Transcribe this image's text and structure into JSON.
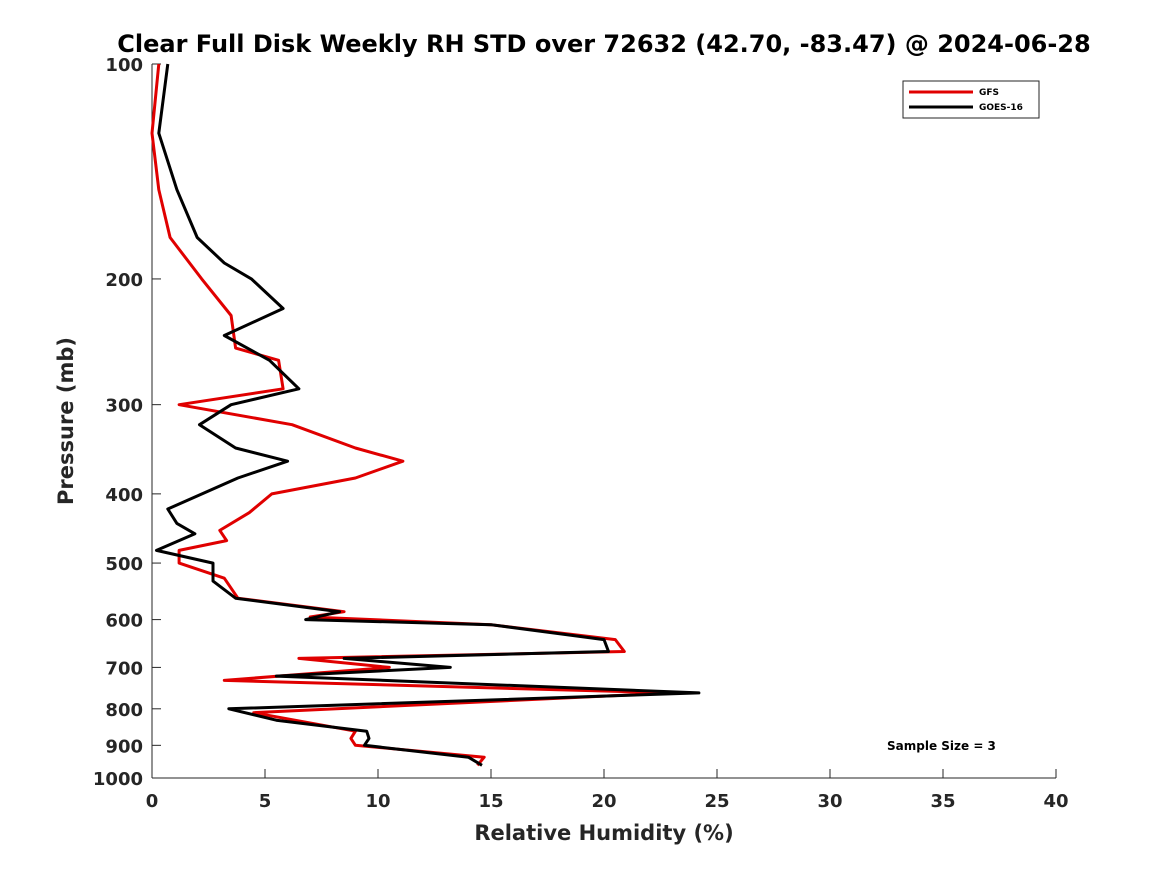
{
  "chart_data": {
    "type": "line",
    "title": "Clear Full Disk Weekly RH STD over 72632 (42.70, -83.47) @ 2024-06-28",
    "xlabel": "Relative Humidity (%)",
    "ylabel": "Pressure (mb)",
    "xlim": [
      0,
      40
    ],
    "ylim": [
      100,
      1000
    ],
    "yscale": "log",
    "yreversed": true,
    "xticks": [
      0,
      5,
      10,
      15,
      20,
      25,
      30,
      35,
      40
    ],
    "yticks": [
      100,
      200,
      300,
      400,
      500,
      600,
      700,
      800,
      900,
      1000
    ],
    "grid": false,
    "legend_position": "top-right",
    "annotation": "Sample Size = 3",
    "series": [
      {
        "name": "GFS",
        "color": "#e00000",
        "points": [
          [
            0.3,
            100
          ],
          [
            0.0,
            125
          ],
          [
            0.3,
            150
          ],
          [
            0.8,
            175
          ],
          [
            2.2,
            200
          ],
          [
            3.5,
            225
          ],
          [
            3.7,
            250
          ],
          [
            5.6,
            260
          ],
          [
            5.8,
            285
          ],
          [
            1.2,
            300
          ],
          [
            6.2,
            320
          ],
          [
            9.0,
            345
          ],
          [
            11.1,
            360
          ],
          [
            9.0,
            380
          ],
          [
            5.3,
            400
          ],
          [
            4.3,
            425
          ],
          [
            3.0,
            450
          ],
          [
            3.3,
            465
          ],
          [
            1.2,
            480
          ],
          [
            1.2,
            500
          ],
          [
            3.2,
            525
          ],
          [
            3.8,
            560
          ],
          [
            8.5,
            585
          ],
          [
            7.0,
            595
          ],
          [
            15.0,
            610
          ],
          [
            20.5,
            640
          ],
          [
            20.9,
            665
          ],
          [
            6.5,
            680
          ],
          [
            10.5,
            700
          ],
          [
            3.2,
            730
          ],
          [
            23.0,
            760
          ],
          [
            4.5,
            810
          ],
          [
            9.0,
            860
          ],
          [
            8.8,
            880
          ],
          [
            9.0,
            900
          ],
          [
            14.7,
            935
          ],
          [
            14.4,
            960
          ]
        ]
      },
      {
        "name": "GOES-16",
        "color": "#000000",
        "points": [
          [
            0.7,
            100
          ],
          [
            0.3,
            125
          ],
          [
            1.1,
            150
          ],
          [
            2.0,
            175
          ],
          [
            3.2,
            190
          ],
          [
            4.4,
            200
          ],
          [
            5.8,
            220
          ],
          [
            3.2,
            240
          ],
          [
            5.2,
            260
          ],
          [
            6.5,
            285
          ],
          [
            3.5,
            300
          ],
          [
            2.1,
            320
          ],
          [
            3.7,
            345
          ],
          [
            6.0,
            360
          ],
          [
            3.8,
            380
          ],
          [
            0.7,
            420
          ],
          [
            1.1,
            440
          ],
          [
            1.9,
            455
          ],
          [
            0.2,
            480
          ],
          [
            2.7,
            500
          ],
          [
            2.7,
            530
          ],
          [
            3.7,
            560
          ],
          [
            8.3,
            585
          ],
          [
            6.8,
            600
          ],
          [
            15.0,
            610
          ],
          [
            20.0,
            640
          ],
          [
            20.2,
            665
          ],
          [
            8.5,
            680
          ],
          [
            13.2,
            700
          ],
          [
            5.5,
            720
          ],
          [
            24.2,
            760
          ],
          [
            3.4,
            800
          ],
          [
            5.5,
            830
          ],
          [
            9.5,
            860
          ],
          [
            9.6,
            880
          ],
          [
            9.4,
            900
          ],
          [
            14.0,
            935
          ],
          [
            14.6,
            960
          ]
        ]
      }
    ]
  }
}
